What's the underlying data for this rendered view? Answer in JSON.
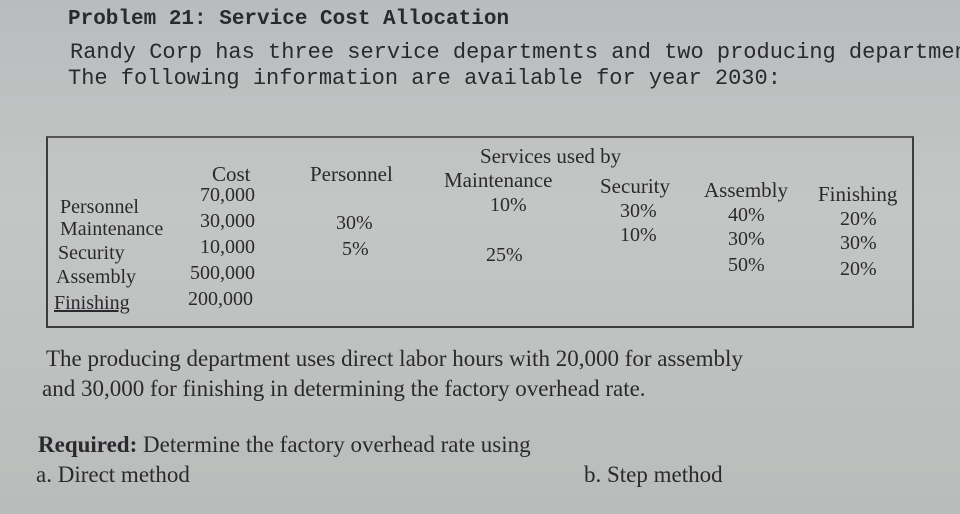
{
  "problem": {
    "title": "Problem 21: Service Cost Allocation",
    "intro_line1": "Randy Corp has three service departments and two producing departments.",
    "intro_line2": "The following information are available for year 2030:"
  },
  "table": {
    "services_header": "Services used by",
    "cost_header": "Cost",
    "columns": [
      "Personnel",
      "Maintenance",
      "Security",
      "Assembly",
      "Finishing"
    ],
    "rows": [
      {
        "dept": "Personnel",
        "cost": "70,000",
        "personnel": "",
        "maintenance": "10%",
        "security": "30%",
        "assembly": "40%",
        "finishing": "20%"
      },
      {
        "dept": "Maintenance",
        "cost": "30,000",
        "personnel": "30%",
        "maintenance": "",
        "security": "10%",
        "assembly": "30%",
        "finishing": "30%"
      },
      {
        "dept": "Security",
        "cost": "10,000",
        "personnel": "5%",
        "maintenance": "25%",
        "security": "",
        "assembly": "50%",
        "finishing": "20%"
      },
      {
        "dept": "Assembly",
        "cost": "500,000"
      },
      {
        "dept": "Finishing",
        "cost": "200,000"
      }
    ]
  },
  "paragraph": {
    "line1": "The producing department uses direct labor hours with 20,000 for assembly",
    "line2": "and 30,000 for finishing in determining the factory overhead rate."
  },
  "required": {
    "label": "Required:",
    "text": " Determine the factory overhead rate using",
    "option_a": "a. Direct method",
    "option_b": "b. Step method"
  }
}
